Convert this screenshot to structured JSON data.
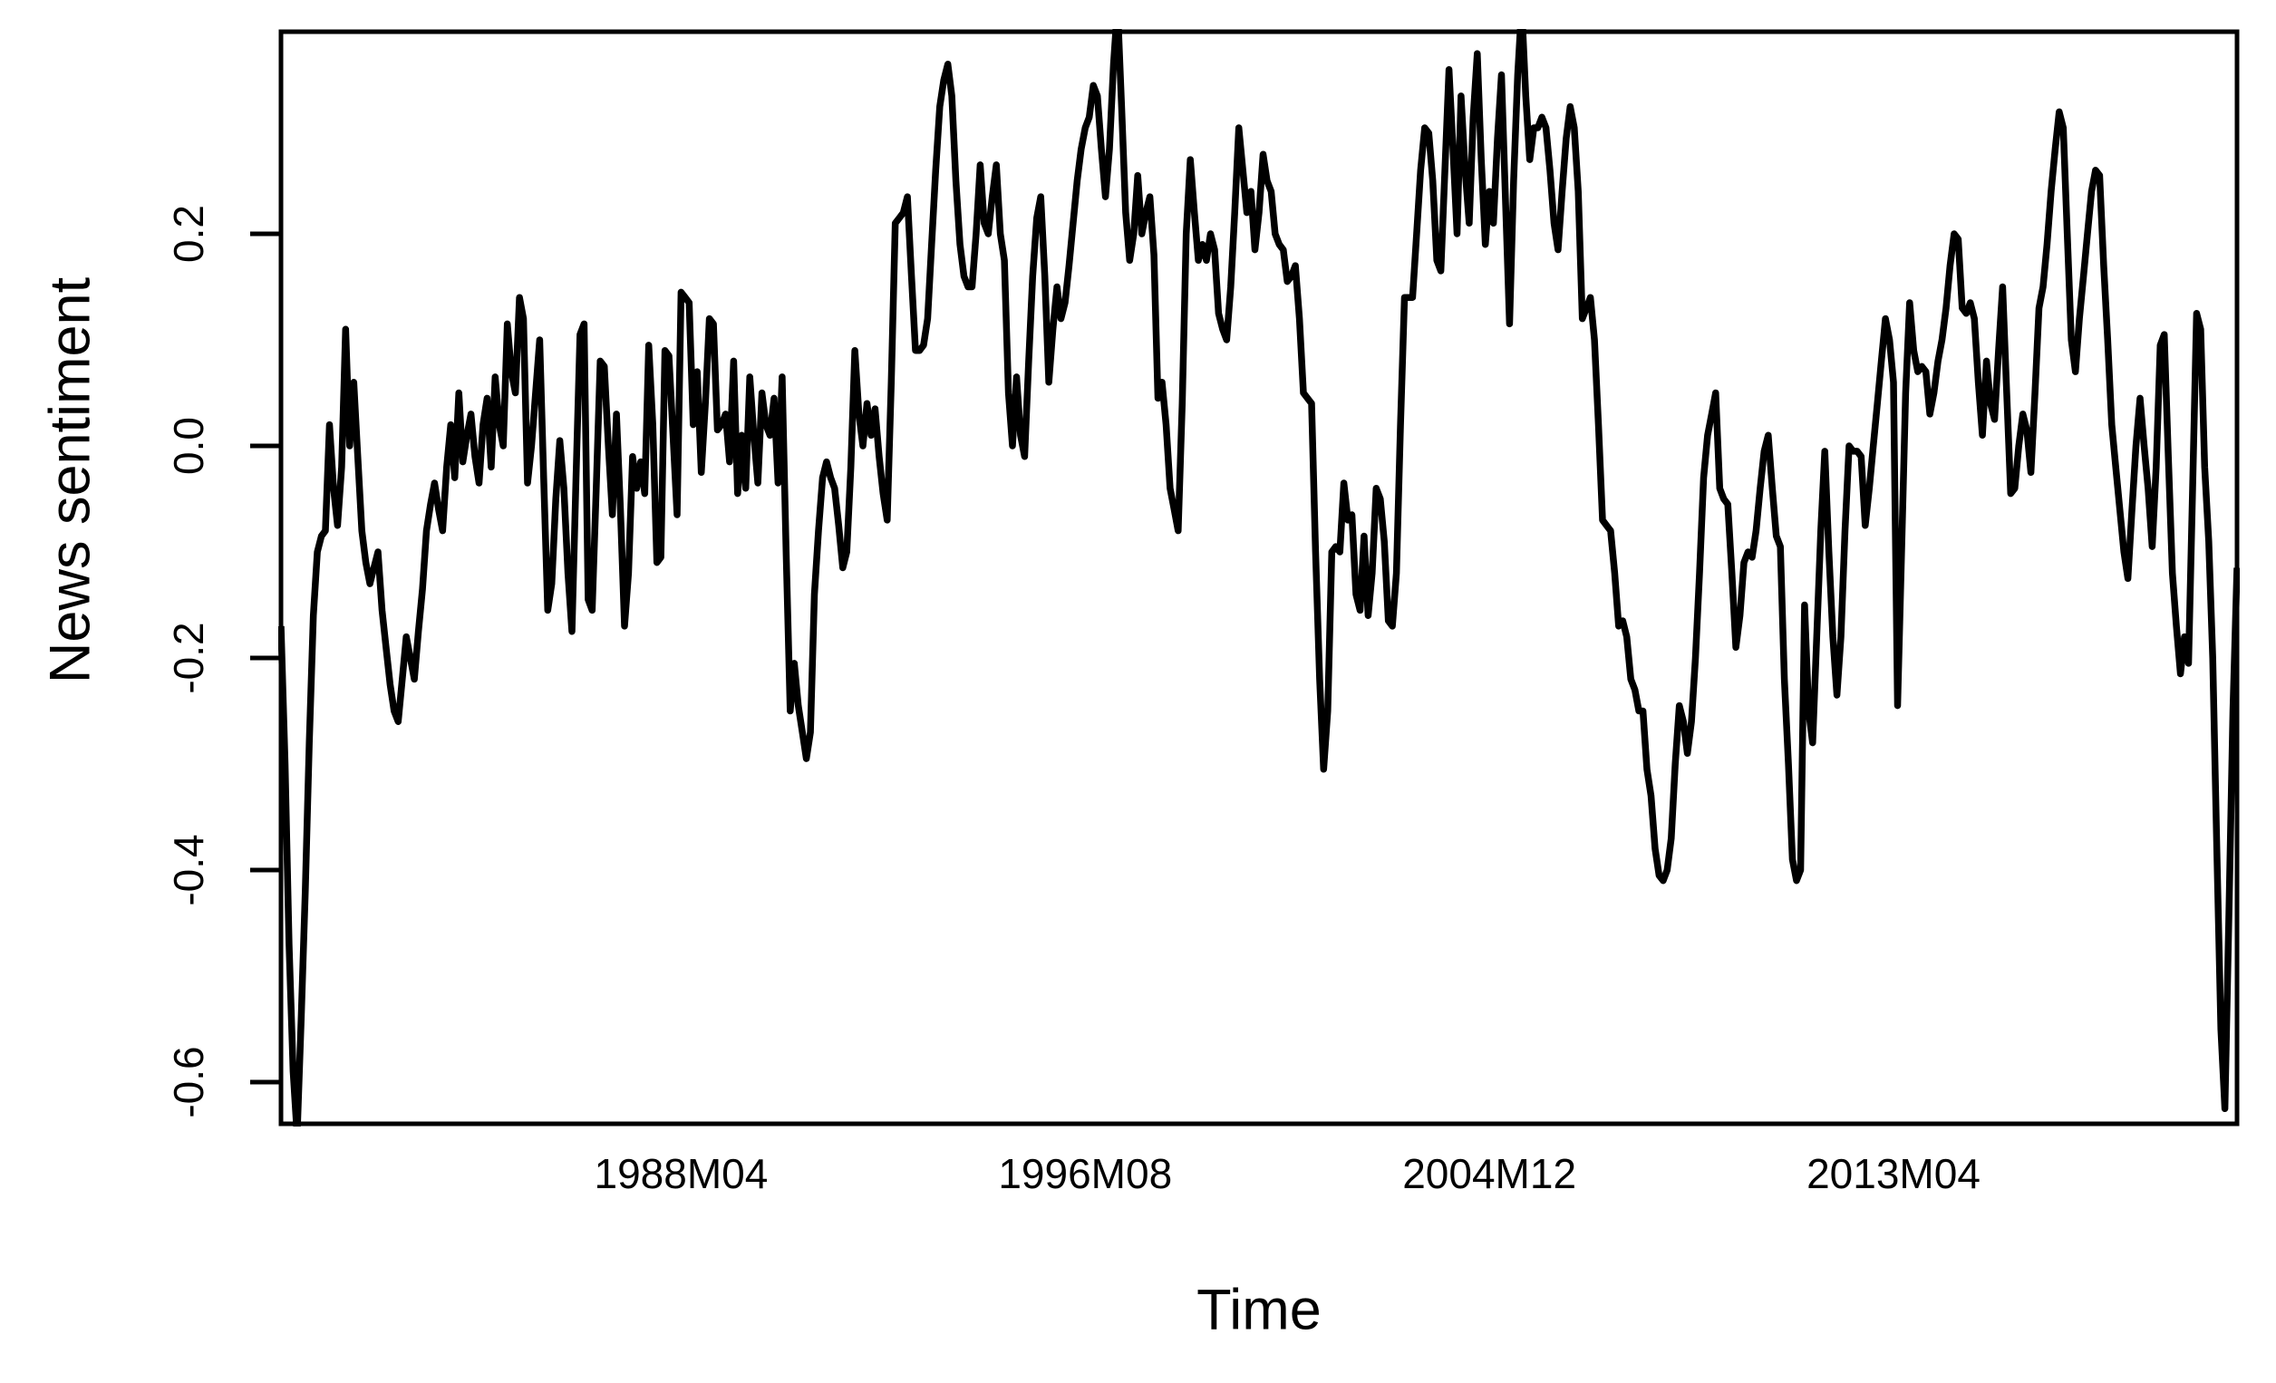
{
  "figure": {
    "background_color": "#ffffff",
    "line_color": "#000000",
    "frame_color": "#000000"
  },
  "chart_data": {
    "type": "line",
    "title": "",
    "xlabel": "Time",
    "ylabel": "News sentiment",
    "x_unit": "month",
    "x_start": "1980M01",
    "x_end": "2020M05",
    "n_points": 485,
    "ylim": [
      -0.64,
      0.39
    ],
    "grid": false,
    "legend": null,
    "yticks": {
      "values": [
        0.2,
        0.0,
        -0.2,
        -0.4,
        -0.6
      ],
      "labels": [
        "0.2",
        "0.0",
        "-0.2",
        "-0.4",
        "-0.6"
      ]
    },
    "xticks": {
      "month_indices": [
        99,
        199,
        299,
        399
      ],
      "labels": [
        "1988M04",
        "1996M08",
        "2004M12",
        "2013M04"
      ]
    },
    "series": [
      {
        "name": "News sentiment",
        "color": "#000000",
        "start": "1980M01",
        "frequency": "monthly",
        "values": [
          -0.17,
          -0.3,
          -0.47,
          -0.59,
          -0.65,
          -0.54,
          -0.42,
          -0.28,
          -0.16,
          -0.1,
          -0.085,
          -0.08,
          0.02,
          -0.04,
          -0.075,
          -0.02,
          0.11,
          0.0,
          0.06,
          -0.01,
          -0.08,
          -0.11,
          -0.13,
          -0.115,
          -0.1,
          -0.155,
          -0.19,
          -0.225,
          -0.25,
          -0.26,
          -0.22,
          -0.18,
          -0.2,
          -0.22,
          -0.175,
          -0.135,
          -0.08,
          -0.055,
          -0.035,
          -0.06,
          -0.08,
          -0.02,
          0.02,
          -0.03,
          0.05,
          -0.015,
          0.01,
          0.03,
          -0.01,
          -0.035,
          0.02,
          0.045,
          -0.02,
          0.065,
          0.02,
          0.0,
          0.115,
          0.07,
          0.05,
          0.14,
          0.12,
          -0.035,
          0.0,
          0.05,
          0.1,
          -0.03,
          -0.155,
          -0.13,
          -0.05,
          0.005,
          -0.04,
          -0.12,
          -0.175,
          -0.03,
          0.105,
          0.115,
          -0.145,
          -0.155,
          -0.04,
          0.08,
          0.075,
          0.0,
          -0.065,
          0.03,
          -0.06,
          -0.17,
          -0.12,
          -0.01,
          -0.04,
          -0.015,
          -0.045,
          0.095,
          0.02,
          -0.11,
          -0.105,
          0.09,
          0.085,
          0.01,
          -0.065,
          0.145,
          0.14,
          0.135,
          0.02,
          0.07,
          -0.025,
          0.04,
          0.12,
          0.115,
          0.015,
          0.02,
          0.03,
          -0.015,
          0.08,
          -0.045,
          0.01,
          -0.04,
          0.065,
          0.01,
          -0.035,
          0.05,
          0.02,
          0.01,
          0.045,
          -0.035,
          0.065,
          -0.1,
          -0.25,
          -0.205,
          -0.245,
          -0.27,
          -0.295,
          -0.27,
          -0.14,
          -0.08,
          -0.03,
          -0.015,
          -0.03,
          -0.04,
          -0.075,
          -0.115,
          -0.1,
          -0.02,
          0.09,
          0.03,
          0.0,
          0.04,
          0.01,
          0.035,
          -0.01,
          -0.045,
          -0.07,
          0.06,
          0.21,
          0.215,
          0.22,
          0.235,
          0.16,
          0.09,
          0.09,
          0.095,
          0.12,
          0.19,
          0.26,
          0.32,
          0.345,
          0.36,
          0.33,
          0.25,
          0.19,
          0.16,
          0.15,
          0.15,
          0.2,
          0.265,
          0.21,
          0.2,
          0.235,
          0.265,
          0.2,
          0.175,
          0.05,
          0.0,
          0.065,
          0.01,
          -0.01,
          0.08,
          0.16,
          0.215,
          0.235,
          0.16,
          0.06,
          0.11,
          0.15,
          0.12,
          0.135,
          0.17,
          0.21,
          0.25,
          0.28,
          0.3,
          0.31,
          0.34,
          0.33,
          0.28,
          0.235,
          0.28,
          0.36,
          0.415,
          0.32,
          0.22,
          0.175,
          0.2,
          0.255,
          0.2,
          0.22,
          0.235,
          0.18,
          0.045,
          0.06,
          0.02,
          -0.04,
          -0.06,
          -0.08,
          0.04,
          0.2,
          0.27,
          0.22,
          0.175,
          0.19,
          0.175,
          0.2,
          0.185,
          0.125,
          0.11,
          0.1,
          0.15,
          0.22,
          0.3,
          0.26,
          0.22,
          0.24,
          0.185,
          0.22,
          0.275,
          0.25,
          0.24,
          0.2,
          0.19,
          0.185,
          0.155,
          0.16,
          0.17,
          0.12,
          0.05,
          0.045,
          0.04,
          -0.1,
          -0.22,
          -0.305,
          -0.25,
          -0.1,
          -0.095,
          -0.1,
          -0.035,
          -0.07,
          -0.065,
          -0.14,
          -0.155,
          -0.085,
          -0.16,
          -0.12,
          -0.04,
          -0.05,
          -0.09,
          -0.165,
          -0.17,
          -0.12,
          0.02,
          0.14,
          0.14,
          0.14,
          0.2,
          0.26,
          0.3,
          0.295,
          0.25,
          0.175,
          0.165,
          0.26,
          0.355,
          0.28,
          0.2,
          0.33,
          0.26,
          0.21,
          0.31,
          0.37,
          0.27,
          0.19,
          0.24,
          0.21,
          0.29,
          0.35,
          0.23,
          0.115,
          0.25,
          0.35,
          0.415,
          0.33,
          0.27,
          0.3,
          0.3,
          0.31,
          0.3,
          0.26,
          0.21,
          0.185,
          0.24,
          0.29,
          0.32,
          0.3,
          0.24,
          0.12,
          0.13,
          0.14,
          0.1,
          0.02,
          -0.07,
          -0.075,
          -0.08,
          -0.12,
          -0.17,
          -0.165,
          -0.18,
          -0.22,
          -0.23,
          -0.25,
          -0.25,
          -0.305,
          -0.33,
          -0.38,
          -0.405,
          -0.41,
          -0.4,
          -0.37,
          -0.3,
          -0.245,
          -0.26,
          -0.29,
          -0.26,
          -0.2,
          -0.12,
          -0.03,
          0.01,
          0.03,
          0.05,
          -0.04,
          -0.05,
          -0.055,
          -0.12,
          -0.19,
          -0.16,
          -0.11,
          -0.1,
          -0.105,
          -0.08,
          -0.04,
          -0.005,
          0.01,
          -0.04,
          -0.085,
          -0.095,
          -0.22,
          -0.3,
          -0.39,
          -0.41,
          -0.4,
          -0.15,
          -0.25,
          -0.28,
          -0.18,
          -0.08,
          -0.005,
          -0.1,
          -0.18,
          -0.235,
          -0.18,
          -0.08,
          0.0,
          -0.005,
          -0.005,
          -0.01,
          -0.075,
          -0.04,
          0.0,
          0.04,
          0.08,
          0.12,
          0.1,
          0.06,
          -0.245,
          -0.1,
          0.05,
          0.135,
          0.09,
          0.07,
          0.075,
          0.07,
          0.03,
          0.05,
          0.08,
          0.1,
          0.13,
          0.17,
          0.2,
          0.195,
          0.13,
          0.125,
          0.135,
          0.12,
          0.06,
          0.01,
          0.08,
          0.04,
          0.025,
          0.09,
          0.15,
          0.05,
          -0.045,
          -0.04,
          0.0,
          0.03,
          0.015,
          -0.025,
          0.05,
          0.13,
          0.15,
          0.19,
          0.24,
          0.28,
          0.315,
          0.3,
          0.2,
          0.1,
          0.07,
          0.12,
          0.16,
          0.2,
          0.24,
          0.26,
          0.255,
          0.17,
          0.1,
          0.02,
          -0.02,
          -0.06,
          -0.1,
          -0.125,
          -0.06,
          0.0,
          0.045,
          0.0,
          -0.04,
          -0.095,
          -0.02,
          0.095,
          0.105,
          -0.01,
          -0.12,
          -0.17,
          -0.215,
          -0.18,
          -0.205,
          -0.04,
          0.125,
          0.11,
          -0.02,
          -0.09,
          -0.2,
          -0.38,
          -0.55,
          -0.625,
          -0.44,
          -0.25,
          -0.115
        ]
      }
    ]
  }
}
